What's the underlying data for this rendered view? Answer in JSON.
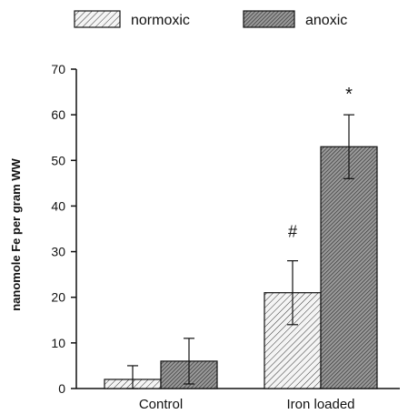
{
  "chart_data": {
    "type": "bar",
    "title": "",
    "xlabel": "",
    "ylabel": "nanomole Fe per gram WW",
    "ylim": [
      0,
      70
    ],
    "yticks": [
      0,
      10,
      20,
      30,
      40,
      50,
      60,
      70
    ],
    "grid": false,
    "legend_position": "top",
    "categories": [
      "Control",
      "Iron loaded"
    ],
    "series": [
      {
        "name": "normoxic",
        "values": [
          2,
          21
        ],
        "errors": [
          3,
          7
        ],
        "fill": "light-hatch",
        "color": "#e8e8e8"
      },
      {
        "name": "anoxic",
        "values": [
          6,
          53
        ],
        "errors": [
          5,
          7
        ],
        "fill": "dark-hatch",
        "color": "#8a8a8a"
      }
    ],
    "annotations": [
      {
        "text": "#",
        "category": "Iron loaded",
        "series": "normoxic"
      },
      {
        "text": "*",
        "category": "Iron loaded",
        "series": "anoxic"
      }
    ]
  }
}
